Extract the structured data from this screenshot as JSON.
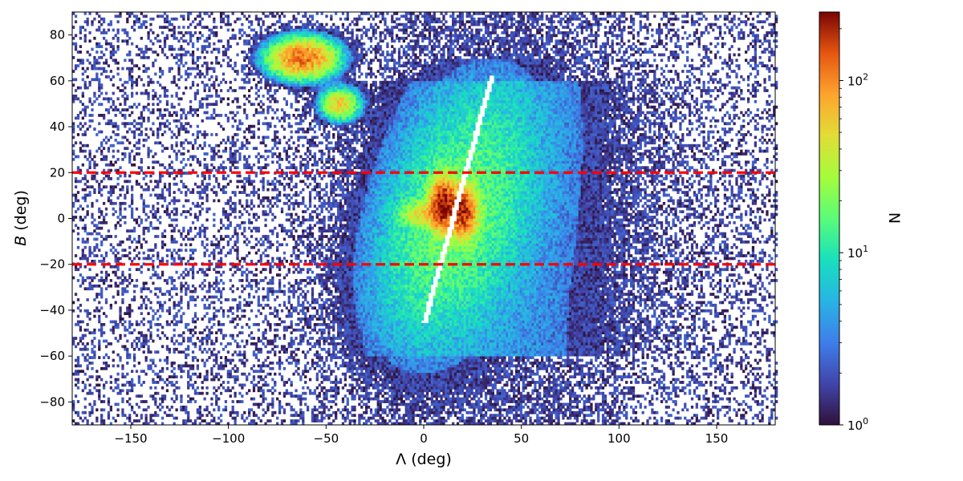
{
  "chart_data": {
    "type": "heatmap",
    "subtype": "2D histogram (log color scale)",
    "xlabel": "Λ (deg)",
    "ylabel_var": "B",
    "ylabel_unit": " (deg)",
    "xlim": [
      -180,
      180
    ],
    "ylim": [
      -90,
      90
    ],
    "x_ticks": [
      -150,
      -100,
      -50,
      0,
      50,
      100,
      150
    ],
    "x_tick_labels": [
      "−150",
      "−100",
      "−50",
      "0",
      "50",
      "100",
      "150"
    ],
    "y_ticks": [
      -80,
      -60,
      -40,
      -20,
      0,
      20,
      40,
      60,
      80
    ],
    "y_tick_labels": [
      "−80",
      "−60",
      "−40",
      "−20",
      "0",
      "20",
      "40",
      "60",
      "80"
    ],
    "colorbar": {
      "label": "N",
      "scale": "log",
      "range": [
        1,
        250
      ],
      "ticks": [
        1,
        10,
        100
      ],
      "tick_bases": [
        "10",
        "10",
        "10"
      ],
      "tick_exponents": [
        "0",
        "1",
        "2"
      ],
      "colormap": "turbo"
    },
    "reference_lines": [
      {
        "y": 20,
        "style": "dashed",
        "color": "#ff0000"
      },
      {
        "y": -20,
        "style": "dashed",
        "color": "#ff0000"
      }
    ],
    "features": [
      {
        "kind": "overdensity",
        "x": -62,
        "y": 70,
        "peak_N": 120
      },
      {
        "kind": "overdensity",
        "x": -43,
        "y": 50,
        "peak_N": 60
      },
      {
        "kind": "overdensity",
        "x": 10,
        "y": 6,
        "peak_N": 250
      },
      {
        "kind": "overdensity",
        "x": 20,
        "y": 3,
        "peak_N": 180
      },
      {
        "kind": "overdensity",
        "x": 0,
        "y": 2,
        "peak_N": 40
      },
      {
        "kind": "gap",
        "x_at_y0": 15,
        "slope_deg_per_deg": 3.1
      }
    ],
    "bin_size_deg": [
      1.2,
      1.2
    ],
    "grid": false,
    "legend": "none"
  }
}
